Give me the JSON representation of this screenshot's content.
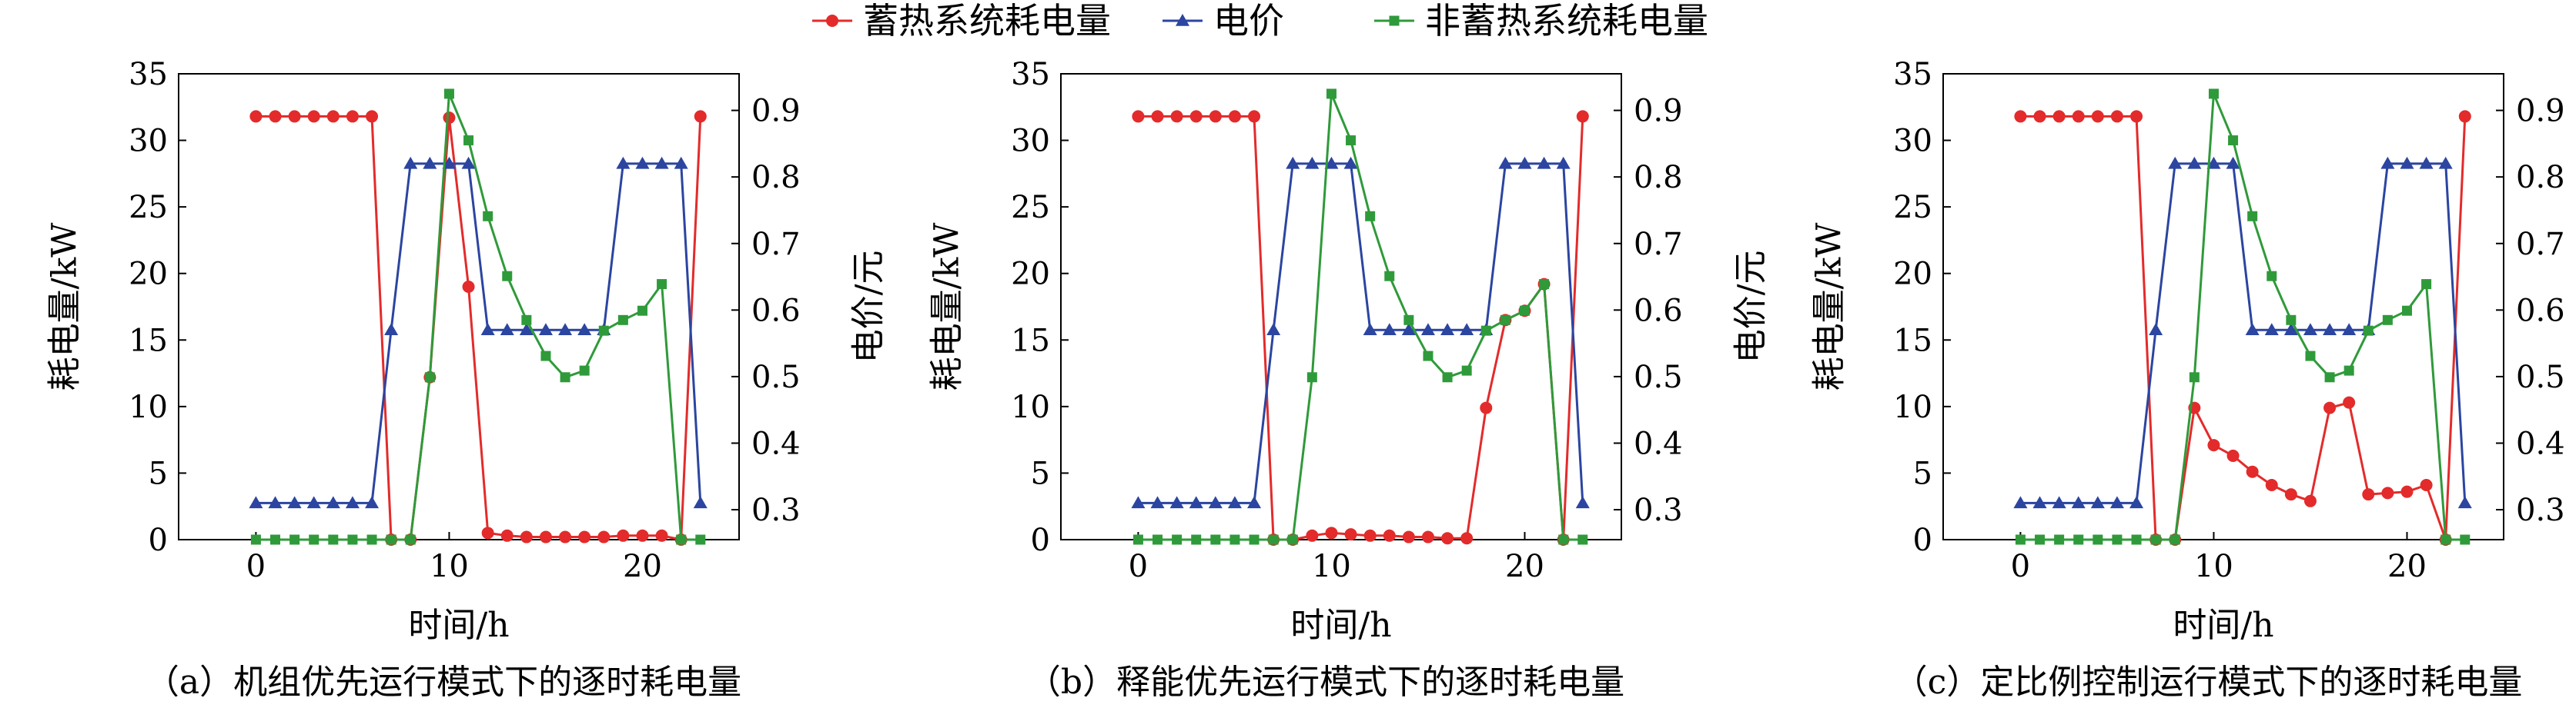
{
  "legend": [
    {
      "label": "蓄热系统耗电量",
      "color": "#e32b2b",
      "marker": "circle"
    },
    {
      "label": "电价",
      "color": "#2b45a0",
      "marker": "triangle"
    },
    {
      "label": "非蓄热系统耗电量",
      "color": "#2f9a3a",
      "marker": "square"
    }
  ],
  "chart_data": [
    {
      "type": "line",
      "xlabel": "时间/h",
      "ylabel": "耗电量/kW",
      "y2label": "电价/元",
      "caption": "（a）机组优先运行模式下的逐时耗电量",
      "xlim": [
        -4,
        25
      ],
      "xticks": [
        0,
        10,
        20
      ],
      "ylim": [
        0,
        35
      ],
      "yticks": [
        0,
        5,
        10,
        15,
        20,
        25,
        30,
        35
      ],
      "y2lim": [
        0.255,
        0.955
      ],
      "y2ticks": [
        0.3,
        0.4,
        0.5,
        0.6,
        0.7,
        0.8,
        0.9
      ],
      "grid": false,
      "x": [
        0,
        1,
        2,
        3,
        4,
        5,
        6,
        7,
        8,
        9,
        10,
        11,
        12,
        13,
        14,
        15,
        16,
        17,
        18,
        19,
        20,
        21,
        22,
        23
      ],
      "series": [
        {
          "name": "蓄热系统耗电量",
          "axis": "left",
          "color": "#e32b2b",
          "marker": "circle",
          "values": [
            31.8,
            31.8,
            31.8,
            31.8,
            31.8,
            31.8,
            31.8,
            0,
            0,
            12.2,
            31.7,
            19,
            0.5,
            0.3,
            0.2,
            0.2,
            0.2,
            0.2,
            0.2,
            0.3,
            0.3,
            0.3,
            0,
            31.8
          ]
        },
        {
          "name": "电价",
          "axis": "right",
          "color": "#2b45a0",
          "marker": "triangle",
          "values": [
            0.31,
            0.31,
            0.31,
            0.31,
            0.31,
            0.31,
            0.31,
            0.57,
            0.82,
            0.82,
            0.82,
            0.82,
            0.57,
            0.57,
            0.57,
            0.57,
            0.57,
            0.57,
            0.57,
            0.82,
            0.82,
            0.82,
            0.82,
            0.31
          ]
        },
        {
          "name": "非蓄热系统耗电量",
          "axis": "left",
          "color": "#2f9a3a",
          "marker": "square",
          "values": [
            0,
            0,
            0,
            0,
            0,
            0,
            0,
            0,
            0,
            12.2,
            33.5,
            30,
            24.3,
            19.8,
            16.5,
            13.8,
            12.2,
            12.7,
            15.7,
            16.5,
            17.2,
            19.2,
            0,
            0
          ]
        }
      ]
    },
    {
      "type": "line",
      "xlabel": "时间/h",
      "ylabel": "耗电量/kW",
      "y2label": "电价/元",
      "caption": "（b）释能优先运行模式下的逐时耗电量",
      "xlim": [
        -4,
        25
      ],
      "xticks": [
        0,
        10,
        20
      ],
      "ylim": [
        0,
        35
      ],
      "yticks": [
        0,
        5,
        10,
        15,
        20,
        25,
        30,
        35
      ],
      "y2lim": [
        0.255,
        0.955
      ],
      "y2ticks": [
        0.3,
        0.4,
        0.5,
        0.6,
        0.7,
        0.8,
        0.9
      ],
      "grid": false,
      "x": [
        0,
        1,
        2,
        3,
        4,
        5,
        6,
        7,
        8,
        9,
        10,
        11,
        12,
        13,
        14,
        15,
        16,
        17,
        18,
        19,
        20,
        21,
        22,
        23
      ],
      "series": [
        {
          "name": "蓄热系统耗电量",
          "axis": "left",
          "color": "#e32b2b",
          "marker": "circle",
          "values": [
            31.8,
            31.8,
            31.8,
            31.8,
            31.8,
            31.8,
            31.8,
            0,
            0,
            0.3,
            0.5,
            0.4,
            0.3,
            0.3,
            0.2,
            0.2,
            0.1,
            0.1,
            9.9,
            16.5,
            17.2,
            19.2,
            0,
            31.8
          ]
        },
        {
          "name": "电价",
          "axis": "right",
          "color": "#2b45a0",
          "marker": "triangle",
          "values": [
            0.31,
            0.31,
            0.31,
            0.31,
            0.31,
            0.31,
            0.31,
            0.57,
            0.82,
            0.82,
            0.82,
            0.82,
            0.57,
            0.57,
            0.57,
            0.57,
            0.57,
            0.57,
            0.57,
            0.82,
            0.82,
            0.82,
            0.82,
            0.31
          ]
        },
        {
          "name": "非蓄热系统耗电量",
          "axis": "left",
          "color": "#2f9a3a",
          "marker": "square",
          "values": [
            0,
            0,
            0,
            0,
            0,
            0,
            0,
            0,
            0,
            12.2,
            33.5,
            30,
            24.3,
            19.8,
            16.5,
            13.8,
            12.2,
            12.7,
            15.7,
            16.5,
            17.2,
            19.2,
            0,
            0
          ]
        }
      ]
    },
    {
      "type": "line",
      "xlabel": "时间/h",
      "ylabel": "耗电量/kW",
      "y2label": "电价/元",
      "caption": "（c）定比例控制运行模式下的逐时耗电量",
      "xlim": [
        -4,
        25
      ],
      "xticks": [
        0,
        10,
        20
      ],
      "ylim": [
        0,
        35
      ],
      "yticks": [
        0,
        5,
        10,
        15,
        20,
        25,
        30,
        35
      ],
      "y2lim": [
        0.255,
        0.955
      ],
      "y2ticks": [
        0.3,
        0.4,
        0.5,
        0.6,
        0.7,
        0.8,
        0.9
      ],
      "grid": false,
      "x": [
        0,
        1,
        2,
        3,
        4,
        5,
        6,
        7,
        8,
        9,
        10,
        11,
        12,
        13,
        14,
        15,
        16,
        17,
        18,
        19,
        20,
        21,
        22,
        23
      ],
      "series": [
        {
          "name": "蓄热系统耗电量",
          "axis": "left",
          "color": "#e32b2b",
          "marker": "circle",
          "values": [
            31.8,
            31.8,
            31.8,
            31.8,
            31.8,
            31.8,
            31.8,
            0,
            0,
            9.9,
            7.1,
            6.3,
            5.1,
            4.1,
            3.4,
            2.9,
            9.9,
            10.3,
            3.4,
            3.5,
            3.6,
            4.1,
            0,
            31.8
          ]
        },
        {
          "name": "电价",
          "axis": "right",
          "color": "#2b45a0",
          "marker": "triangle",
          "values": [
            0.31,
            0.31,
            0.31,
            0.31,
            0.31,
            0.31,
            0.31,
            0.57,
            0.82,
            0.82,
            0.82,
            0.82,
            0.57,
            0.57,
            0.57,
            0.57,
            0.57,
            0.57,
            0.57,
            0.82,
            0.82,
            0.82,
            0.82,
            0.31
          ]
        },
        {
          "name": "非蓄热系统耗电量",
          "axis": "left",
          "color": "#2f9a3a",
          "marker": "square",
          "values": [
            0,
            0,
            0,
            0,
            0,
            0,
            0,
            0,
            0,
            12.2,
            33.5,
            30,
            24.3,
            19.8,
            16.5,
            13.8,
            12.2,
            12.7,
            15.7,
            16.5,
            17.2,
            19.2,
            0,
            0
          ]
        }
      ]
    }
  ]
}
